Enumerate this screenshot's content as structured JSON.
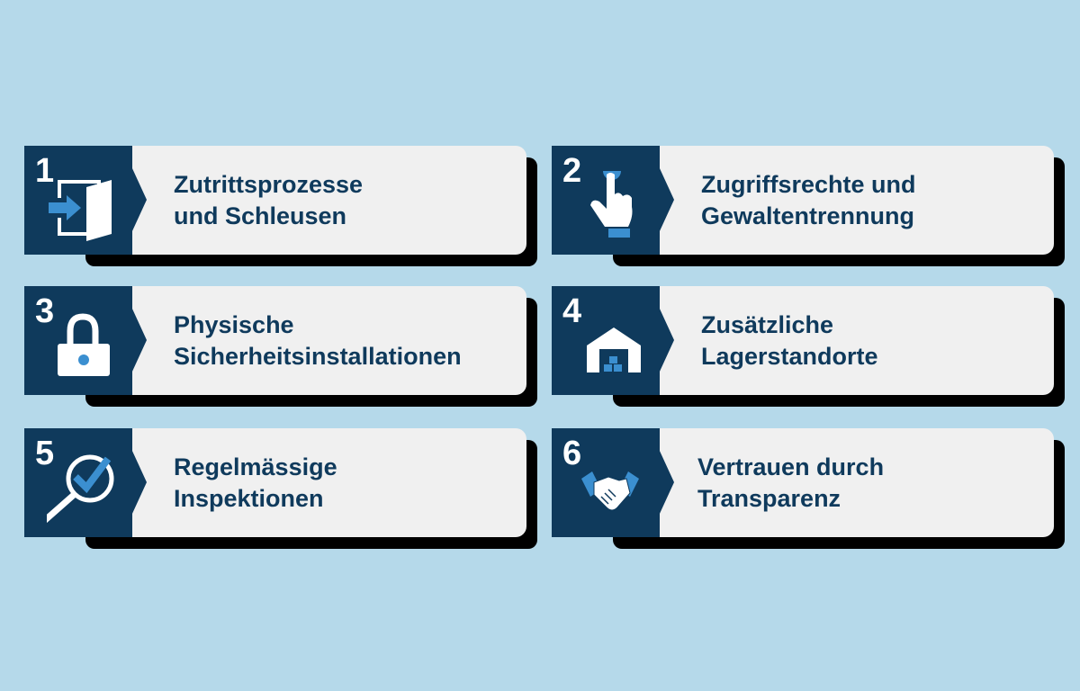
{
  "colors": {
    "background": "#b5d9ea",
    "dark": "#0f3a5c",
    "panel": "#f0f0f0",
    "accent": "#3b8fd0"
  },
  "items": [
    {
      "number": "1",
      "icon": "door-enter-icon",
      "line1": "Zutrittsprozesse",
      "line2": "und Schleusen"
    },
    {
      "number": "2",
      "icon": "pointing-hand-icon",
      "line1": "Zugriffsrechte und",
      "line2": "Gewaltentrennung"
    },
    {
      "number": "3",
      "icon": "padlock-icon",
      "line1": "Physische",
      "line2": "Sicherheitsinstallationen"
    },
    {
      "number": "4",
      "icon": "warehouse-icon",
      "line1": "Zusätzliche",
      "line2": "Lagerstandorte"
    },
    {
      "number": "5",
      "icon": "magnifier-check-icon",
      "line1": "Regelmässige",
      "line2": "Inspektionen"
    },
    {
      "number": "6",
      "icon": "handshake-icon",
      "line1": "Vertrauen durch",
      "line2": "Transparenz"
    }
  ]
}
